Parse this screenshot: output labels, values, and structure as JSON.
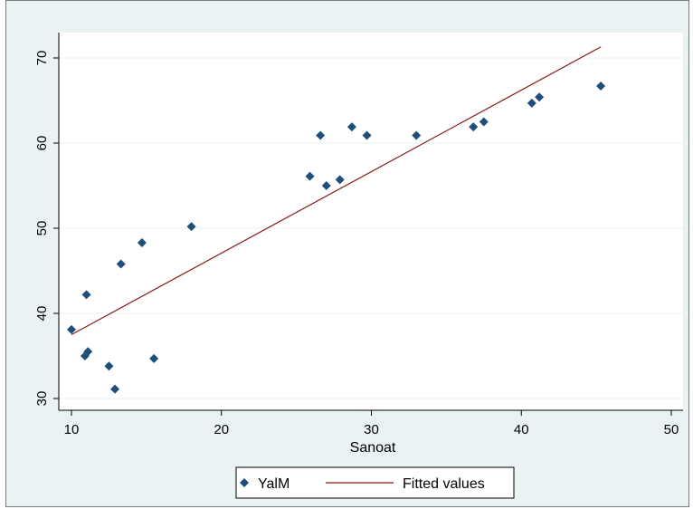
{
  "chart_data": {
    "type": "scatter",
    "title": "",
    "xlabel": "Sanoat",
    "ylabel": "",
    "xlim": [
      10,
      50
    ],
    "ylim": [
      30,
      70
    ],
    "x_ticks": [
      10,
      20,
      30,
      40,
      50
    ],
    "y_ticks": [
      30,
      40,
      50,
      60,
      70
    ],
    "grid": true,
    "legend_position": "bottom",
    "series": [
      {
        "name": "YalM",
        "kind": "scatter",
        "marker": "diamond",
        "color": "#1f4e79",
        "points": [
          [
            10.0,
            38.1
          ],
          [
            10.9,
            35.0
          ],
          [
            11.0,
            42.2
          ],
          [
            11.1,
            35.5
          ],
          [
            12.5,
            33.8
          ],
          [
            12.9,
            31.1
          ],
          [
            13.3,
            45.8
          ],
          [
            14.7,
            48.3
          ],
          [
            15.5,
            34.7
          ],
          [
            18.0,
            50.2
          ],
          [
            25.9,
            56.1
          ],
          [
            26.6,
            60.9
          ],
          [
            27.0,
            55.0
          ],
          [
            27.9,
            55.7
          ],
          [
            28.7,
            61.9
          ],
          [
            29.7,
            60.9
          ],
          [
            33.0,
            60.9
          ],
          [
            36.8,
            61.9
          ],
          [
            37.5,
            62.5
          ],
          [
            40.7,
            64.7
          ],
          [
            41.2,
            65.4
          ],
          [
            45.3,
            66.7
          ]
        ]
      },
      {
        "name": "Fitted values",
        "kind": "line",
        "color": "#8b1a1a",
        "points": [
          [
            10.0,
            37.5
          ],
          [
            45.3,
            71.3
          ]
        ]
      }
    ]
  }
}
